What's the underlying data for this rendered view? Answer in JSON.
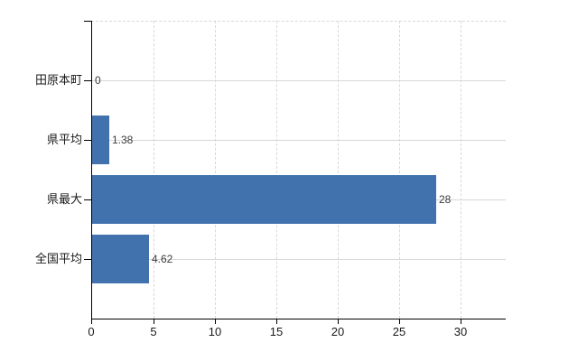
{
  "chart_data": {
    "type": "bar",
    "orientation": "horizontal",
    "title": "",
    "xlabel": "",
    "ylabel": "",
    "categories": [
      "田原本町",
      "県平均",
      "県最大",
      "全国平均"
    ],
    "values": [
      0,
      1.38,
      28,
      4.62
    ],
    "value_labels": [
      "0",
      "1.38",
      "28",
      "4.62"
    ],
    "x_ticks": [
      0,
      5,
      10,
      15,
      20,
      25,
      30
    ],
    "xlim": [
      0,
      33.7
    ],
    "grid": true,
    "legend": false,
    "colors": {
      "bar": "#4272ae",
      "gridline": "#d8d8d8",
      "axis": "#000000",
      "category_text": "#1a1a1a",
      "value_text": "#3c3c3c"
    }
  }
}
